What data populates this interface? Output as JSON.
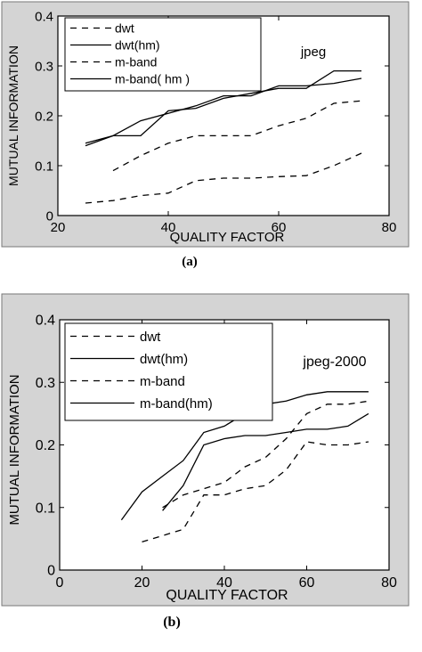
{
  "chart_data": [
    {
      "type": "line",
      "caption": "(a)",
      "annotation": "jpeg",
      "xlabel": "QUALITY FACTOR",
      "ylabel": "MUTUAL INFORMATION",
      "xlim": [
        20,
        80
      ],
      "ylim": [
        0,
        0.4
      ],
      "xticks": [
        "20",
        "40",
        "60",
        "80"
      ],
      "yticks": [
        "0",
        "0.1",
        "0.2",
        "0.3",
        "0.4"
      ],
      "grid": false,
      "legend_position": "top-left",
      "background": "#d4d4d4",
      "series": [
        {
          "name": "dwt",
          "style": "dashed",
          "x": [
            25,
            30,
            35,
            40,
            45,
            50,
            55,
            60,
            65,
            70,
            75
          ],
          "y": [
            0.025,
            0.03,
            0.04,
            0.045,
            0.07,
            0.075,
            0.075,
            0.078,
            0.08,
            0.1,
            0.125
          ]
        },
        {
          "name": "dwt(hm)",
          "style": "solid",
          "x": [
            25,
            30,
            35,
            40,
            45,
            50,
            55,
            60,
            65,
            70,
            75
          ],
          "y": [
            0.145,
            0.16,
            0.16,
            0.21,
            0.215,
            0.235,
            0.245,
            0.255,
            0.255,
            0.29,
            0.29
          ]
        },
        {
          "name": "m-band",
          "style": "dashed",
          "x": [
            30,
            35,
            40,
            45,
            50,
            55,
            60,
            65,
            70,
            75
          ],
          "y": [
            0.09,
            0.12,
            0.145,
            0.16,
            0.16,
            0.16,
            0.18,
            0.195,
            0.225,
            0.23
          ]
        },
        {
          "name": "m-band( hm )",
          "style": "solid",
          "x": [
            25,
            30,
            35,
            40,
            45,
            50,
            55,
            60,
            65,
            70,
            75
          ],
          "y": [
            0.14,
            0.16,
            0.19,
            0.205,
            0.22,
            0.24,
            0.24,
            0.26,
            0.26,
            0.265,
            0.275
          ]
        }
      ]
    },
    {
      "type": "line",
      "caption": "(b)",
      "annotation": "jpeg-2000",
      "xlabel": "QUALITY FACTOR",
      "ylabel": "MUTUAL INFORMATION",
      "xlim": [
        0,
        80
      ],
      "ylim": [
        0,
        0.4
      ],
      "xticks": [
        "0",
        "20",
        "40",
        "60",
        "80"
      ],
      "yticks": [
        "0",
        "0.1",
        "0.2",
        "0.3",
        "0.4"
      ],
      "grid": false,
      "legend_position": "top-left",
      "background": "#d4d4d4",
      "series": [
        {
          "name": "dwt",
          "style": "dashed",
          "x": [
            20,
            25,
            30,
            35,
            40,
            45,
            50,
            55,
            60,
            65,
            70,
            75
          ],
          "y": [
            0.045,
            0.055,
            0.065,
            0.12,
            0.12,
            0.13,
            0.135,
            0.16,
            0.205,
            0.2,
            0.2,
            0.205
          ]
        },
        {
          "name": "dwt(hm)",
          "style": "solid",
          "x": [
            25,
            30,
            35,
            40,
            45,
            50,
            55,
            60,
            65,
            70,
            75
          ],
          "y": [
            0.095,
            0.135,
            0.2,
            0.21,
            0.215,
            0.215,
            0.22,
            0.225,
            0.225,
            0.23,
            0.25
          ]
        },
        {
          "name": "m-band",
          "style": "dashed",
          "x": [
            25,
            30,
            35,
            40,
            45,
            50,
            55,
            60,
            65,
            70,
            75
          ],
          "y": [
            0.1,
            0.12,
            0.13,
            0.14,
            0.165,
            0.18,
            0.21,
            0.25,
            0.265,
            0.265,
            0.27
          ]
        },
        {
          "name": "m-band(hm)",
          "style": "solid",
          "x": [
            15,
            20,
            25,
            30,
            35,
            40,
            45,
            50,
            55,
            60,
            65,
            70,
            75
          ],
          "y": [
            0.08,
            0.125,
            0.15,
            0.175,
            0.22,
            0.23,
            0.25,
            0.265,
            0.27,
            0.28,
            0.285,
            0.285,
            0.285
          ]
        }
      ]
    }
  ]
}
